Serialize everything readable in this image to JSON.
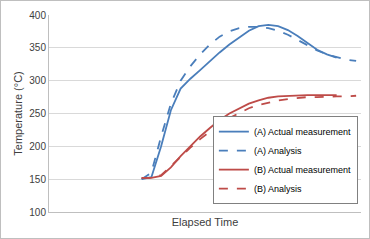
{
  "chart_data": {
    "type": "line",
    "x_label": "Elapsed Time",
    "y_label": "Temperature (°C)",
    "categories": [
      null,
      null,
      null,
      null,
      null,
      null,
      null,
      null,
      null,
      null,
      null,
      null,
      null,
      null,
      null,
      null,
      null,
      null,
      null,
      null,
      null,
      null,
      null,
      null,
      null,
      null,
      null,
      null,
      null,
      null,
      null,
      null
    ],
    "series": [
      {
        "name": "(A) Actual measurement",
        "color": "#4a7ebb",
        "line_style": "solid",
        "values": [
          null,
          null,
          null,
          null,
          null,
          null,
          null,
          null,
          null,
          150,
          153,
          200,
          255,
          288,
          303,
          316,
          330,
          343,
          355,
          366,
          376,
          383,
          385,
          383,
          377,
          368,
          357,
          347,
          340,
          335,
          null,
          null
        ]
      },
      {
        "name": "(A) Analysis",
        "color": "#4a7ebb",
        "line_style": "dash",
        "values": [
          null,
          null,
          null,
          null,
          null,
          null,
          null,
          null,
          null,
          150,
          160,
          215,
          265,
          300,
          322,
          340,
          355,
          367,
          375,
          380,
          382,
          382,
          380,
          376,
          370,
          362,
          354,
          346,
          340,
          336,
          332,
          330
        ]
      },
      {
        "name": "(B) Actual measurement",
        "color": "#be4b48",
        "line_style": "solid",
        "values": [
          null,
          null,
          null,
          null,
          null,
          null,
          null,
          null,
          null,
          152,
          152,
          155,
          168,
          185,
          200,
          215,
          228,
          240,
          250,
          258,
          265,
          270,
          274,
          276,
          277,
          278,
          278,
          278,
          278,
          278,
          null,
          null
        ]
      },
      {
        "name": "(B) Analysis",
        "color": "#be4b48",
        "line_style": "dash",
        "values": [
          null,
          null,
          null,
          null,
          null,
          null,
          null,
          null,
          null,
          152,
          152,
          156,
          170,
          185,
          198,
          211,
          223,
          234,
          243,
          251,
          258,
          263,
          267,
          270,
          272,
          274,
          275,
          275,
          276,
          276,
          276,
          277
        ]
      }
    ],
    "ylim": [
      100,
      400
    ],
    "yticks": [
      100,
      150,
      200,
      250,
      300,
      350,
      400
    ],
    "grid": true,
    "legend": "lower right",
    "tick_labels": "y"
  }
}
